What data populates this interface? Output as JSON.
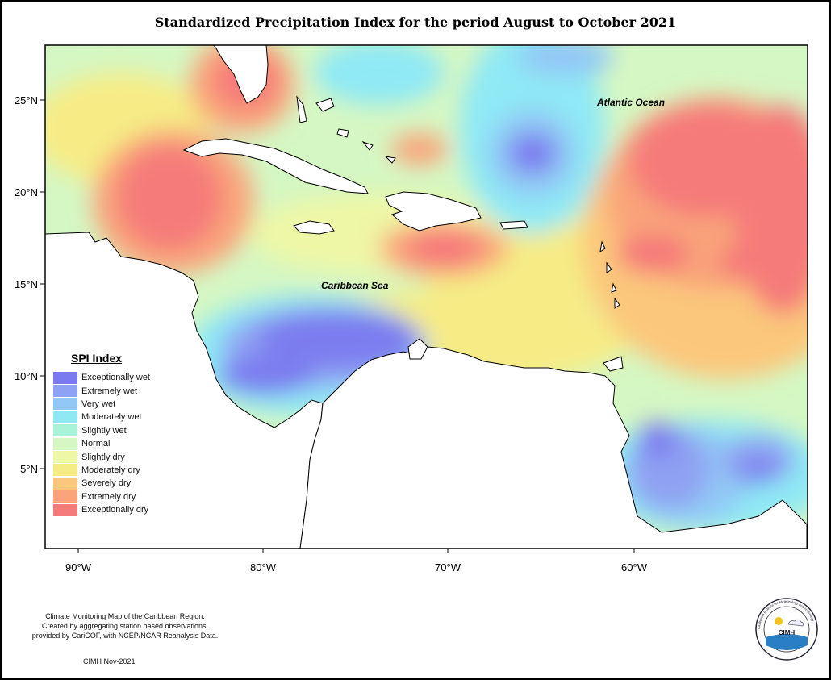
{
  "title": "Standardized Precipitation Index for the period August to October 2021",
  "axes": {
    "lat_ticks": [
      {
        "value": 25,
        "label": "25°N"
      },
      {
        "value": 20,
        "label": "20°N"
      },
      {
        "value": 15,
        "label": "15°N"
      },
      {
        "value": 10,
        "label": "10°N"
      },
      {
        "value": 5,
        "label": "5°N"
      }
    ],
    "lon_ticks": [
      {
        "value": -90,
        "label": "90°W"
      },
      {
        "value": -80,
        "label": "80°W"
      },
      {
        "value": -70,
        "label": "70°W"
      },
      {
        "value": -60,
        "label": "60°W"
      }
    ],
    "lon_range": [
      -91.8,
      -51.2
    ],
    "lat_range": [
      1.1,
      28.3
    ]
  },
  "labels": {
    "caribbean_sea": "Caribbean Sea",
    "atlantic_ocean": "Atlantic Ocean"
  },
  "legend": {
    "title": "SPI Index",
    "items": [
      {
        "label": "Exceptionally wet",
        "color": "#7b7bef"
      },
      {
        "label": "Extremely wet",
        "color": "#8fa1f2"
      },
      {
        "label": "Very wet",
        "color": "#92c8f5"
      },
      {
        "label": "Moderately wet",
        "color": "#8fe9f5"
      },
      {
        "label": "Slightly wet",
        "color": "#a9f3d8"
      },
      {
        "label": "Normal",
        "color": "#d5f7c3"
      },
      {
        "label": "Slightly dry",
        "color": "#eef7a6"
      },
      {
        "label": "Moderately dry",
        "color": "#f6ec86"
      },
      {
        "label": "Severely dry",
        "color": "#fbc77c"
      },
      {
        "label": "Extremely dry",
        "color": "#f9a47a"
      },
      {
        "label": "Exceptionally dry",
        "color": "#f57a7a"
      }
    ]
  },
  "footnote": {
    "lines": [
      "Climate Monitoring Map of the Caribbean Region.",
      "Created by aggregating station based observations,",
      "provided by CariCOF, with NCEP/NCAR Reanalysis Data."
    ],
    "date": "CIMH Nov-2021"
  },
  "logo": {
    "text": "CIMH",
    "ring_text": "Caribbean Institute for Meteorology and Hydrology"
  }
}
